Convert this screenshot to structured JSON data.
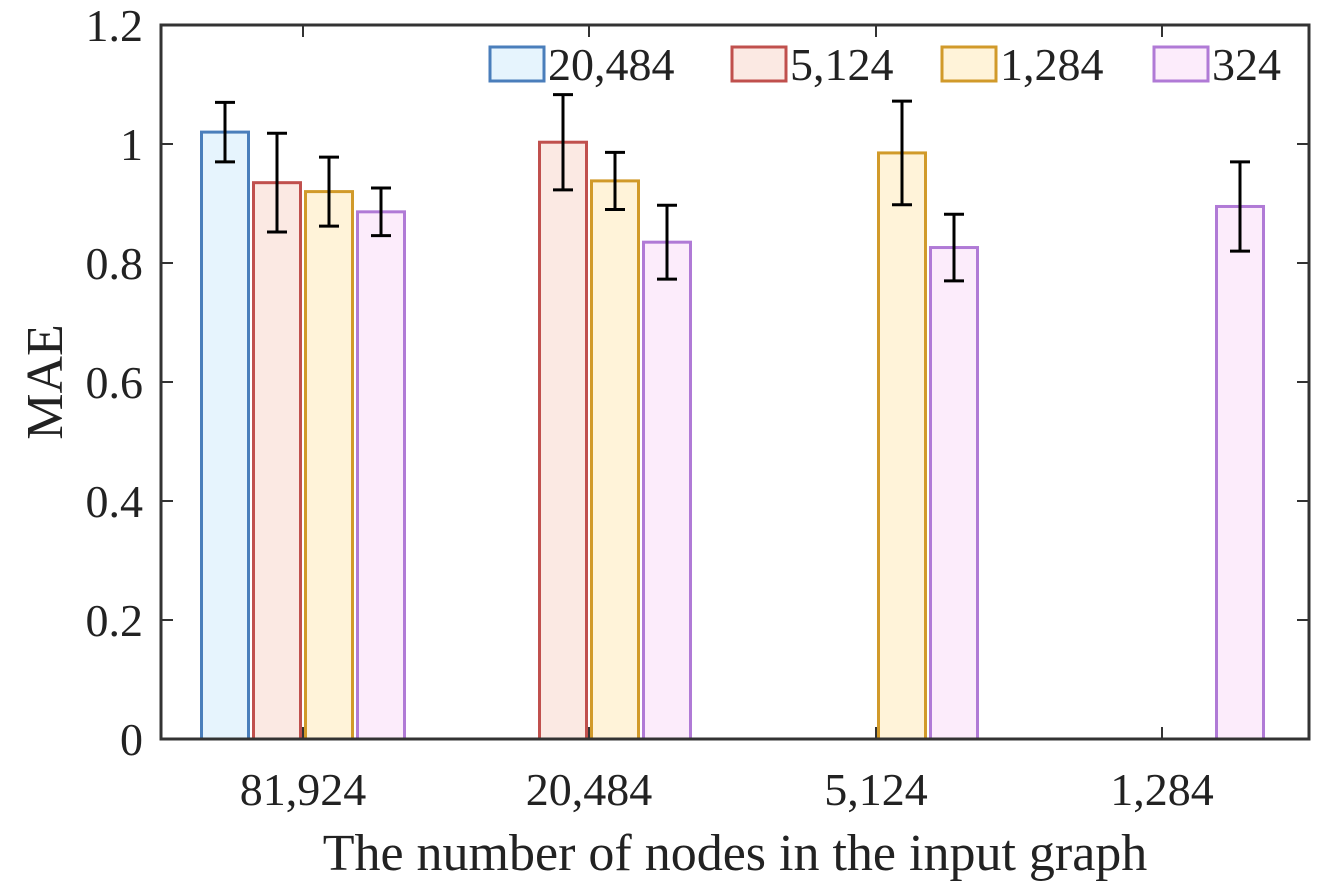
{
  "chart_data": {
    "type": "bar",
    "xlabel": "The number of nodes in the input graph",
    "ylabel": "MAE",
    "ylim": [
      0,
      1.2
    ],
    "yticks": [
      0,
      0.2,
      0.4,
      0.6,
      0.8,
      1,
      1.2
    ],
    "ytick_labels": [
      "0",
      "0.2",
      "0.4",
      "0.6",
      "0.8",
      "1",
      "1.2"
    ],
    "categories": [
      "81,924",
      "20,484",
      "5,124",
      "1,284"
    ],
    "legend_position": "top-right",
    "series": [
      {
        "name": "20,484",
        "stroke": "#4a7ebb",
        "fill": "#e6f4fd",
        "values": [
          1.02,
          0,
          0,
          0
        ],
        "errors": [
          0.05,
          null,
          null,
          null
        ]
      },
      {
        "name": "5,124",
        "stroke": "#c0504d",
        "fill": "#fbe9e3",
        "values": [
          0.935,
          1.003,
          0,
          0
        ],
        "errors": [
          0.083,
          0.08,
          null,
          null
        ]
      },
      {
        "name": "1,284",
        "stroke": "#d19a2a",
        "fill": "#fff3d9",
        "values": [
          0.92,
          0.938,
          0.985,
          0
        ],
        "errors": [
          0.058,
          0.048,
          0.087,
          null
        ]
      },
      {
        "name": "324",
        "stroke": "#b07ad6",
        "fill": "#fcecfb",
        "values": [
          0.886,
          0.835,
          0.826,
          0.895
        ],
        "errors": [
          0.04,
          0.062,
          0.056,
          0.075
        ]
      }
    ]
  }
}
